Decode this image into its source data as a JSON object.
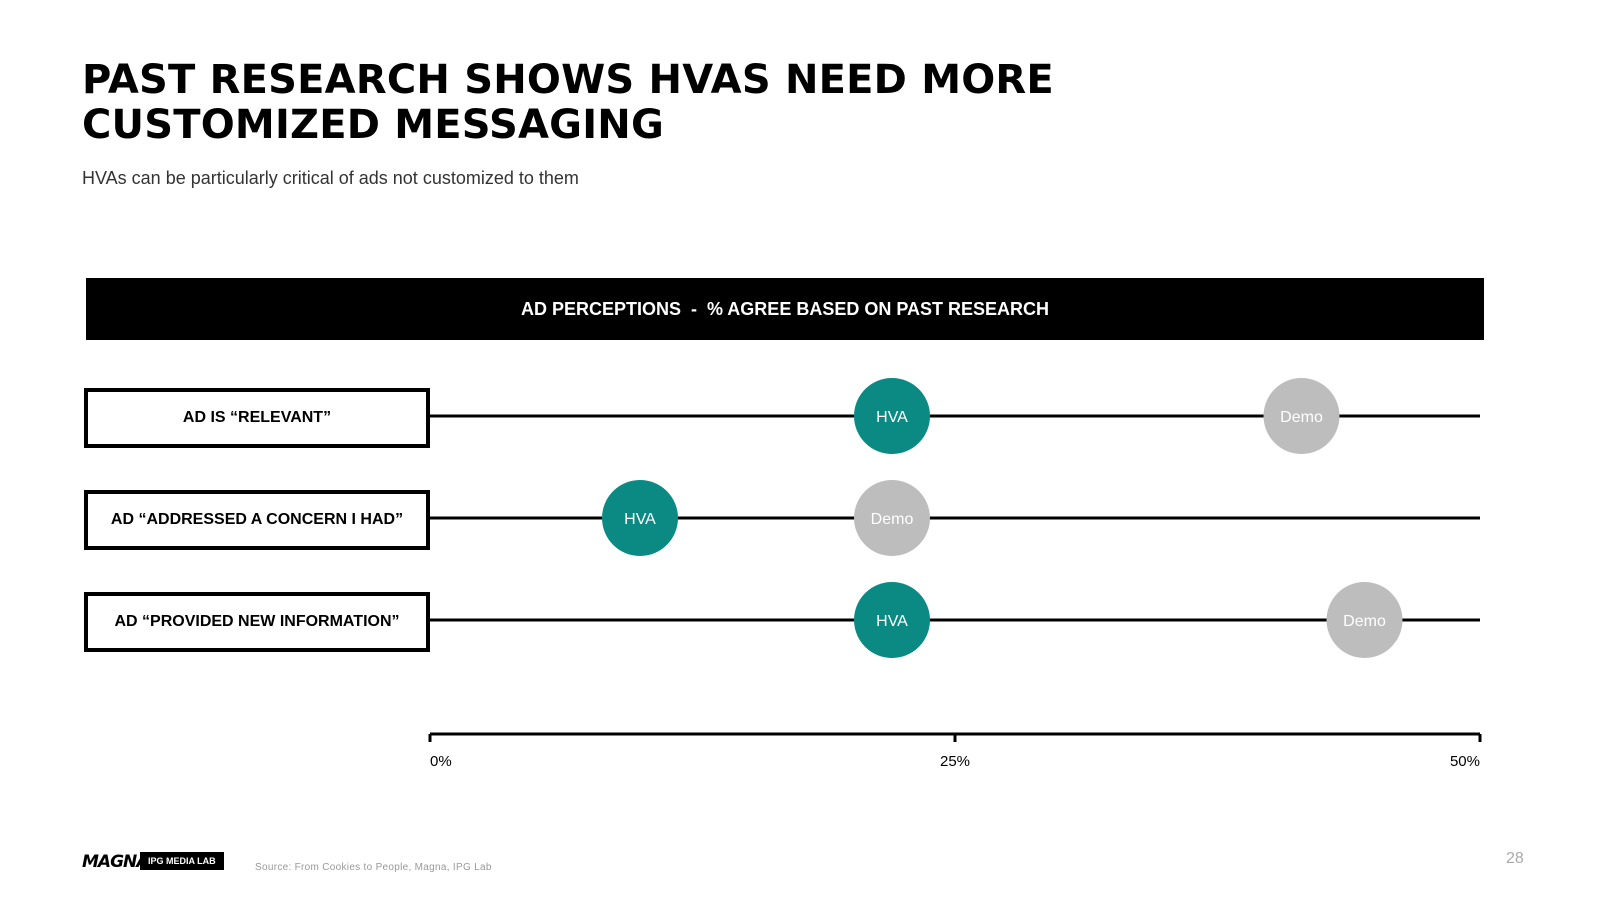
{
  "slide": {
    "title": "PAST RESEARCH SHOWS HVAs NEED MORE CUSTOMIZED MESSAGING",
    "subtitle": "HVAs can be particularly critical of ads not customized to them",
    "page_number": "28"
  },
  "footer": {
    "logo": "MAGNA",
    "badge": "IPG MEDIA LAB",
    "source": "Source: From Cookies to People, Magna, IPG Lab"
  },
  "colors": {
    "hva": "#0b8a84",
    "demo": "#bdbdbd",
    "line": "#000000",
    "header_bg": "#000000"
  },
  "chart_data": {
    "type": "scatter",
    "title": "AD PERCEPTIONS  -  % AGREE BASED ON PAST RESEARCH",
    "categories": [
      "AD IS “RELEVANT”",
      "AD “ADDRESSED A CONCERN I HAD”",
      "AD “PROVIDED NEW INFORMATION”"
    ],
    "series": [
      {
        "name": "HVA",
        "values": [
          22,
          10,
          22
        ]
      },
      {
        "name": "Demo",
        "values": [
          41.5,
          22,
          44.5
        ]
      }
    ],
    "xlim": [
      0,
      50
    ],
    "x_ticks": [
      0,
      25,
      50
    ],
    "x_tick_labels": [
      "0%",
      "25%",
      "50%"
    ],
    "xlabel": "",
    "ylabel": "",
    "grid": false,
    "legend": "none"
  }
}
